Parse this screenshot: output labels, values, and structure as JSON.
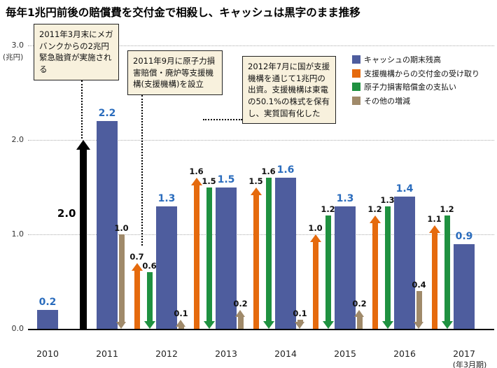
{
  "page_title": "毎年1兆円前後の賠償費を交付金で相殺し、キャッシュは黒字のまま推移",
  "colors": {
    "cash_bar": "#4e5d9e",
    "cash_value_label": "#2a6cbd",
    "grant": "#e56a0d",
    "compensation": "#1f9140",
    "other": "#a08a6a",
    "loan": "#000000",
    "annotation_bg": "#f8f1dd",
    "annotation_border": "#222222",
    "grid": "#aaaaaa",
    "axis": "#000000"
  },
  "chart_data": {
    "type": "bar",
    "title": "毎年1兆円前後の賠償費を交付金で相殺し、キャッシュは黒字のまま推移",
    "ylabel": "兆円",
    "unit_label": "(兆円)",
    "x_axis_note": "(年3月期)",
    "ylim": [
      0.0,
      3.0
    ],
    "grid": true,
    "legend_position": "top-right",
    "yticks": [
      {
        "value": 0.0,
        "label": "0.0"
      },
      {
        "value": 1.0,
        "label": "1.0"
      },
      {
        "value": 2.0,
        "label": "2.0"
      },
      {
        "value": 3.0,
        "label": "3.0"
      }
    ],
    "categories": [
      "2010",
      "2011",
      "2012",
      "2013",
      "2014",
      "2015",
      "2016",
      "2017"
    ],
    "series": [
      {
        "name": "キャッシュの期末残高",
        "type": "bar",
        "color_key": "cash_bar",
        "values": [
          0.2,
          2.2,
          1.3,
          1.5,
          1.6,
          1.3,
          1.4,
          0.9
        ]
      }
    ],
    "loan_arrow": {
      "between": [
        "2010",
        "2011"
      ],
      "value": 2.0,
      "label": "2.0",
      "direction": "up",
      "color_key": "loan"
    },
    "flow_arrows": [
      {
        "between": [
          "2011",
          "2012"
        ],
        "other": {
          "value": 1.0,
          "direction": "down"
        },
        "grant": {
          "value": 0.7,
          "direction": "up"
        },
        "compensation": {
          "value": 0.6,
          "direction": "down"
        }
      },
      {
        "between": [
          "2012",
          "2013"
        ],
        "other": {
          "value": 0.1,
          "direction": "up"
        },
        "grant": {
          "value": 1.6,
          "direction": "up"
        },
        "compensation": {
          "value": 1.5,
          "direction": "down"
        }
      },
      {
        "between": [
          "2013",
          "2014"
        ],
        "other": {
          "value": 0.2,
          "direction": "up"
        },
        "grant": {
          "value": 1.5,
          "direction": "up"
        },
        "compensation": {
          "value": 1.6,
          "direction": "down"
        }
      },
      {
        "between": [
          "2014",
          "2015"
        ],
        "other": {
          "value": 0.1,
          "direction": "down"
        },
        "grant": {
          "value": 1.0,
          "direction": "up"
        },
        "compensation": {
          "value": 1.2,
          "direction": "down"
        }
      },
      {
        "between": [
          "2015",
          "2016"
        ],
        "other": {
          "value": 0.2,
          "direction": "up"
        },
        "grant": {
          "value": 1.2,
          "direction": "up"
        },
        "compensation": {
          "value": 1.3,
          "direction": "down"
        }
      },
      {
        "between": [
          "2016",
          "2017"
        ],
        "other": {
          "value": 0.4,
          "direction": "down"
        },
        "grant": {
          "value": 1.1,
          "direction": "up"
        },
        "compensation": {
          "value": 1.2,
          "direction": "down"
        }
      }
    ],
    "legend": [
      {
        "label": "キャッシュの期末残高",
        "color_key": "cash_bar"
      },
      {
        "label": "支援機構からの交付金の受け取り",
        "color_key": "grant"
      },
      {
        "label": "原子力損害賠償金の支払い",
        "color_key": "compensation"
      },
      {
        "label": "その他の増減",
        "color_key": "other"
      }
    ],
    "annotations": [
      {
        "id": "megabank-emergency-loan",
        "text": "2011年3月末にメガバンクからの2兆円緊急融資が実施される"
      },
      {
        "id": "support-corporation-established",
        "text": "2011年9月に原子力損害賠償・廃炉等支援機構(支援機構)を設立"
      },
      {
        "id": "nationalization",
        "text": "2012年7月に国が支援機構を通じて1兆円の出資。支援機構は東電の50.1%の株式を保有し、実質国有化した"
      }
    ]
  }
}
